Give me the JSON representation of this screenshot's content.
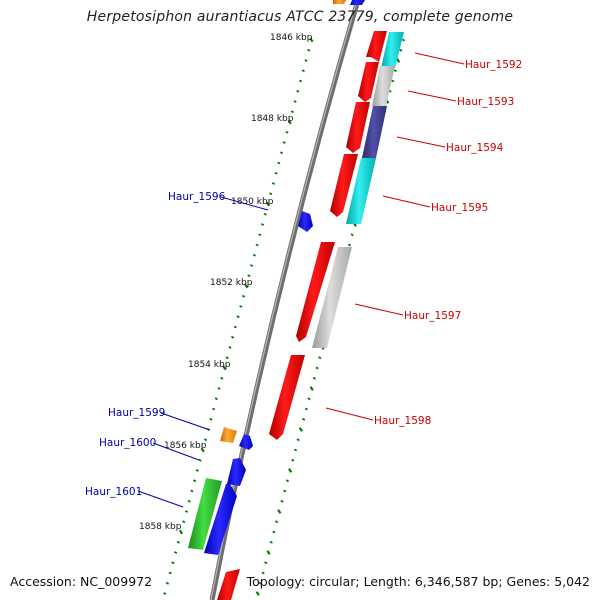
{
  "title": "Herpetosiphon aurantiacus ATCC 23779, complete genome",
  "footer": {
    "accession": "Accession: NC_009972",
    "topology": "Topology: circular; Length: 6,346,587 bp; Genes: 5,042"
  },
  "colors": {
    "backbone": "#808080",
    "tick": "#008000",
    "forward_label": "#cc0000",
    "reverse_label": "#0000aa"
  },
  "kbp_labels": [
    "1846 kbp",
    "1848 kbp",
    "1850 kbp",
    "1852 kbp",
    "1854 kbp",
    "1856 kbp",
    "1858 kbp"
  ],
  "genes": [
    {
      "name": "Haur_1592",
      "strand": "forward"
    },
    {
      "name": "Haur_1593",
      "strand": "forward"
    },
    {
      "name": "Haur_1594",
      "strand": "forward"
    },
    {
      "name": "Haur_1595",
      "strand": "forward"
    },
    {
      "name": "Haur_1597",
      "strand": "forward"
    },
    {
      "name": "Haur_1598",
      "strand": "forward"
    },
    {
      "name": "Haur_1596",
      "strand": "reverse"
    },
    {
      "name": "Haur_1599",
      "strand": "reverse"
    },
    {
      "name": "Haur_1600",
      "strand": "reverse"
    },
    {
      "name": "Haur_1601",
      "strand": "reverse"
    }
  ]
}
